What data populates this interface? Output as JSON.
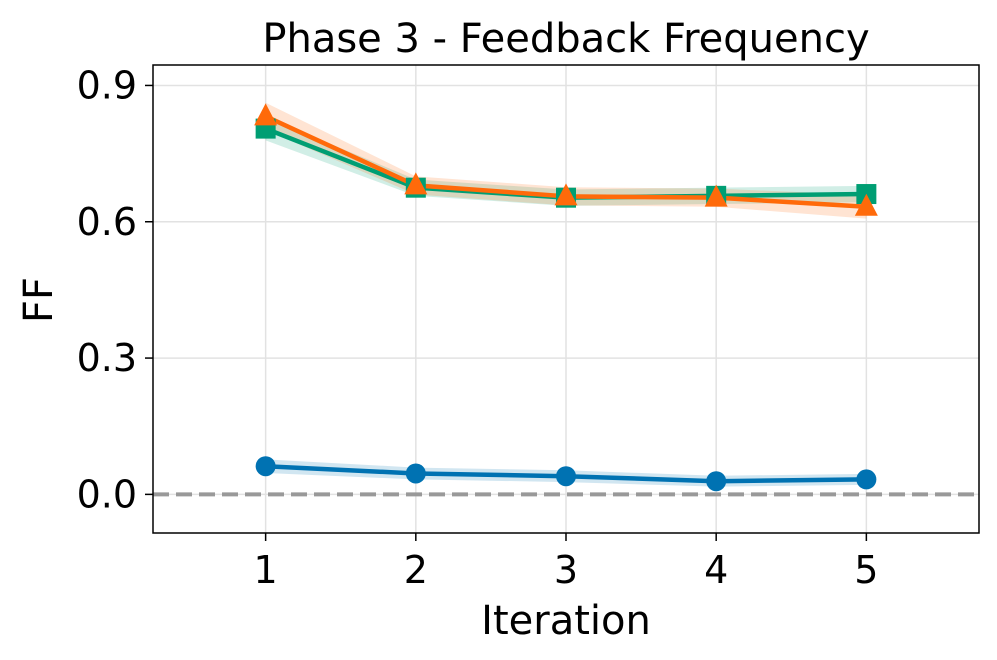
{
  "chart_data": {
    "type": "line",
    "title": "Phase 3 - Feedback Frequency",
    "xlabel": "Iteration",
    "ylabel": "FF",
    "x": [
      1,
      2,
      3,
      4,
      5
    ],
    "xlim": [
      0.25,
      5.75
    ],
    "ylim": [
      -0.085,
      0.945
    ],
    "xticks": [
      1,
      2,
      3,
      4,
      5
    ],
    "xtick_labels": [
      "1",
      "2",
      "3",
      "4",
      "5"
    ],
    "yticks": [
      0.0,
      0.3,
      0.6,
      0.9
    ],
    "ytick_labels": [
      "0.0",
      "0.3",
      "0.6",
      "0.9"
    ],
    "grid": true,
    "reference_line": {
      "y": 0.0,
      "style": "dashed",
      "color": "#999999"
    },
    "series": [
      {
        "name": "circle-series",
        "marker": "circle",
        "color": "#0072B2",
        "values": [
          0.062,
          0.046,
          0.04,
          0.029,
          0.033
        ],
        "band": [
          0.015,
          0.013,
          0.013,
          0.012,
          0.012
        ]
      },
      {
        "name": "square-series",
        "marker": "square",
        "color": "#009E73",
        "values": [
          0.805,
          0.675,
          0.653,
          0.657,
          0.661
        ],
        "band": [
          0.026,
          0.018,
          0.018,
          0.018,
          0.018
        ]
      },
      {
        "name": "triangle-series",
        "marker": "triangle",
        "color": "#FF6A0A",
        "values": [
          0.832,
          0.68,
          0.656,
          0.653,
          0.633
        ],
        "band": [
          0.03,
          0.02,
          0.02,
          0.02,
          0.026
        ]
      }
    ]
  }
}
